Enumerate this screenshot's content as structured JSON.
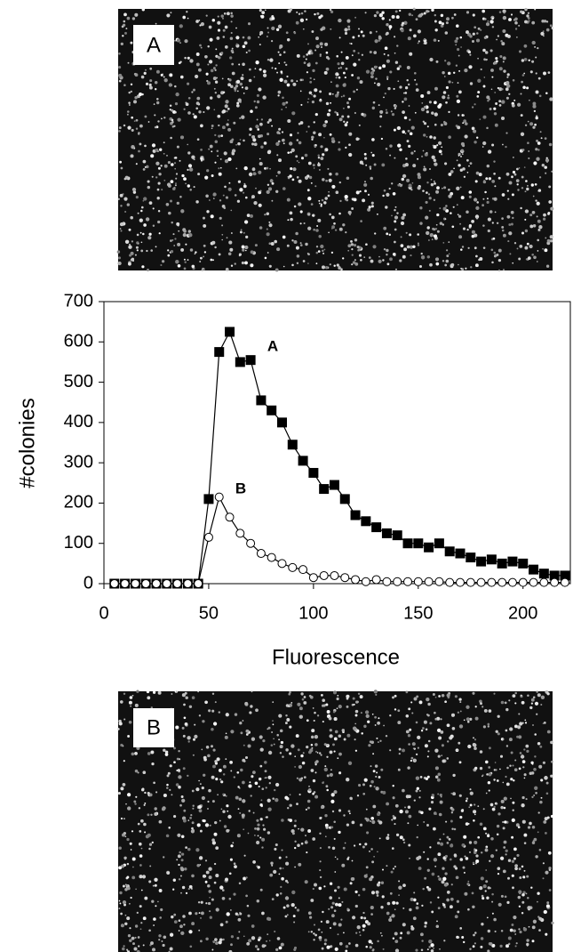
{
  "panels": [
    "A",
    "B"
  ],
  "chart_data": {
    "type": "line",
    "xlabel": "Fluorescence",
    "ylabel": "#colonies",
    "annotations": [
      "A",
      "B"
    ],
    "x": [
      5,
      10,
      15,
      20,
      25,
      30,
      35,
      40,
      45,
      50,
      55,
      60,
      65,
      70,
      75,
      80,
      85,
      90,
      95,
      100,
      105,
      110,
      115,
      120,
      125,
      130,
      135,
      140,
      145,
      150,
      155,
      160,
      165,
      170,
      175,
      180,
      185,
      190,
      195,
      200,
      205,
      210,
      215,
      220
    ],
    "series": [
      {
        "name": "A",
        "color": "#000000",
        "marker": "square",
        "values": [
          0,
          0,
          0,
          0,
          0,
          0,
          0,
          0,
          0,
          210,
          575,
          625,
          550,
          555,
          455,
          430,
          400,
          345,
          305,
          275,
          235,
          245,
          210,
          170,
          155,
          140,
          125,
          120,
          100,
          100,
          90,
          100,
          80,
          75,
          65,
          55,
          60,
          50,
          55,
          50,
          35,
          25,
          20,
          20
        ]
      },
      {
        "name": "B",
        "color": "#000000",
        "marker": "circle",
        "values": [
          0,
          0,
          0,
          0,
          0,
          0,
          0,
          0,
          0,
          115,
          215,
          165,
          125,
          100,
          75,
          65,
          50,
          40,
          35,
          15,
          20,
          20,
          15,
          10,
          5,
          10,
          5,
          5,
          5,
          5,
          5,
          5,
          3,
          3,
          3,
          3,
          3,
          3,
          3,
          3,
          3,
          3,
          3,
          3
        ]
      }
    ],
    "xlim": [
      0,
      223
    ],
    "ylim": [
      0,
      700
    ],
    "xticks": [
      0,
      50,
      100,
      150,
      200
    ],
    "yticks": [
      0,
      100,
      200,
      300,
      400,
      500,
      600,
      700
    ]
  }
}
